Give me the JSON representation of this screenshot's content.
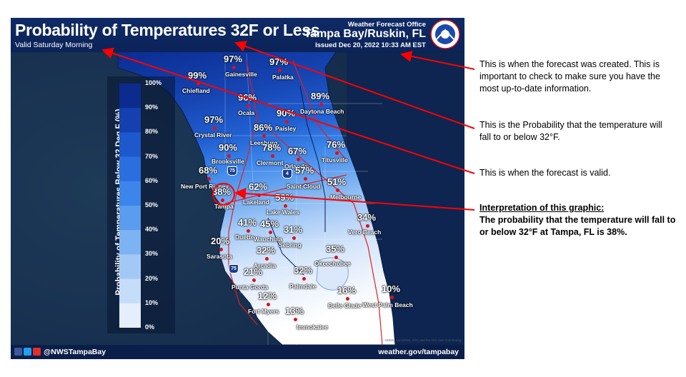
{
  "header": {
    "title": "Probability of Temperatures 32F or Less",
    "valid": "Valid Saturday Morning",
    "office_label": "Weather Forecast Office",
    "office_name": "Tampa Bay/Ruskin, FL",
    "issued": "Issued Dec 20, 2022 10:33 AM EST"
  },
  "legend": {
    "title": "Probability of Temperatures Below 32 Deg F (%)",
    "ticks": [
      "100%",
      "90%",
      "80%",
      "70%",
      "60%",
      "50%",
      "40%",
      "30%",
      "20%",
      "10%",
      "0%"
    ],
    "colors": [
      "#0b2b8f",
      "#1440b0",
      "#1d58cc",
      "#2a6fe0",
      "#3c85ea",
      "#5a9cee",
      "#7db3f2",
      "#a2c9f6",
      "#c6ddf9",
      "#e4eefc",
      "#ffffff"
    ]
  },
  "points": [
    {
      "city": "Gainesville",
      "pct": "97%"
    },
    {
      "city": "Palatka",
      "pct": "97%"
    },
    {
      "city": "Chiefland",
      "pct": "99%"
    },
    {
      "city": "Ocala",
      "pct": "96%"
    },
    {
      "city": "Daytona Beach",
      "pct": "89%"
    },
    {
      "city": "Paisley",
      "pct": "90%"
    },
    {
      "city": "Crystal River",
      "pct": "97%"
    },
    {
      "city": "Leesburg",
      "pct": "86%"
    },
    {
      "city": "Brooksville",
      "pct": "90%"
    },
    {
      "city": "Clermont",
      "pct": "78%"
    },
    {
      "city": "Orlando",
      "pct": "67%"
    },
    {
      "city": "Titusville",
      "pct": "76%"
    },
    {
      "city": "New Port Richey",
      "pct": "68%"
    },
    {
      "city": "Saint Cloud",
      "pct": "57%"
    },
    {
      "city": "Melbourne",
      "pct": "51%"
    },
    {
      "city": "Tampa",
      "pct": "38%"
    },
    {
      "city": "Lakeland",
      "pct": "62%"
    },
    {
      "city": "Lake Wales",
      "pct": "59%"
    },
    {
      "city": "Vero Beach",
      "pct": "34%"
    },
    {
      "city": "Duette",
      "pct": "41%"
    },
    {
      "city": "Wauchula",
      "pct": "45%"
    },
    {
      "city": "Sebring",
      "pct": "31%"
    },
    {
      "city": "Sarasota",
      "pct": "20%"
    },
    {
      "city": "Okeechobee",
      "pct": "35%"
    },
    {
      "city": "Arcadia",
      "pct": "32%"
    },
    {
      "city": "Palmdale",
      "pct": "32%"
    },
    {
      "city": "Punta Gorda",
      "pct": "21%"
    },
    {
      "city": "Belle Glade",
      "pct": "16%"
    },
    {
      "city": "West Palm Beach",
      "pct": "10%"
    },
    {
      "city": "Fort Myers",
      "pct": "12%"
    },
    {
      "city": "Immokalee",
      "pct": "13%"
    }
  ],
  "highways": [
    "75",
    "4",
    "75"
  ],
  "footer": {
    "handle": "@NWSTampaBay",
    "site": "weather.gov/tampabay",
    "credits": "USGS, AeroGRID, IGN, and the GIS User Community"
  },
  "annotations": {
    "issued_note": "This is when the forecast was created.  This is important to check to make sure you have the most up-to-date information.",
    "prob_note": "This is the Probability that the temperature will fall to or below 32°F.",
    "valid_note": "This is when the forecast is valid.",
    "interp_heading": "Interpretation of this graphic:",
    "interp_body": "The probability that the temperature will fall to or below 32°F at Tampa, FL is 38%."
  },
  "colors": {
    "arrow": "#ff0000",
    "point": "#e01010",
    "background": "#0b1e4a",
    "gulf": "#1b3551"
  }
}
